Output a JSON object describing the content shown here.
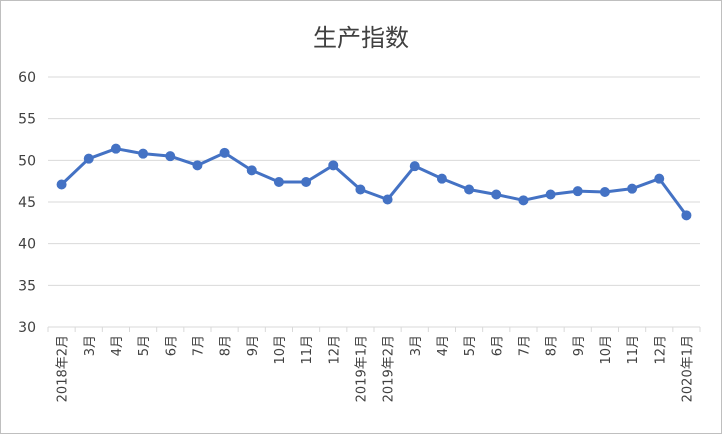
{
  "chart_data": {
    "type": "line",
    "title": "生产指数",
    "xlabel": "",
    "ylabel": "",
    "ylim": [
      30,
      60
    ],
    "yticks": [
      30,
      35,
      40,
      45,
      50,
      55,
      60
    ],
    "grid": true,
    "legend": "none",
    "categories": [
      "2018年2月",
      "3月",
      "4月",
      "5月",
      "6月",
      "7月",
      "8月",
      "9月",
      "10月",
      "11月",
      "12月",
      "2019年1月",
      "2019年2月",
      "3月",
      "4月",
      "5月",
      "6月",
      "7月",
      "8月",
      "9月",
      "10月",
      "11月",
      "12月",
      "2020年1月"
    ],
    "series": [
      {
        "values": [
          47.1,
          50.2,
          51.4,
          50.8,
          50.5,
          49.4,
          50.9,
          48.8,
          47.4,
          47.4,
          49.4,
          46.5,
          45.3,
          49.3,
          47.8,
          46.5,
          45.9,
          45.2,
          45.9,
          46.3,
          46.2,
          46.6,
          47.8,
          43.4
        ]
      }
    ]
  },
  "colors": {
    "line": "#4472c4",
    "grid": "#d9d9d9",
    "text": "#404040"
  }
}
